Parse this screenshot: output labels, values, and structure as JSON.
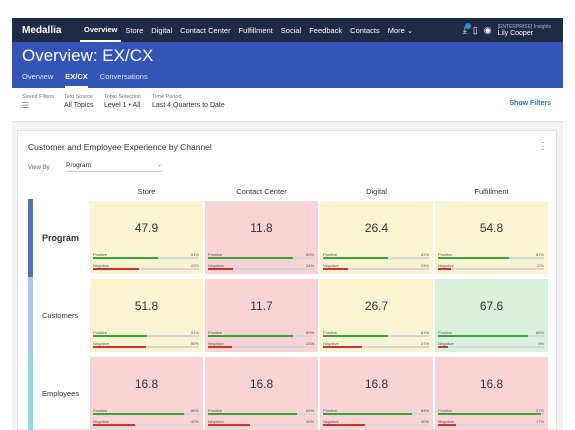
{
  "nav": {
    "logo": "Medallia",
    "items": [
      {
        "label": "Overview",
        "active": true
      },
      {
        "label": "Store",
        "active": false
      },
      {
        "label": "Digital",
        "active": false
      },
      {
        "label": "Contact Center",
        "active": false
      },
      {
        "label": "Fulfillment",
        "active": false
      },
      {
        "label": "Social",
        "active": false
      },
      {
        "label": "Feedback",
        "active": false
      },
      {
        "label": "Contacts",
        "active": false
      },
      {
        "label": "More ⌄",
        "active": false
      }
    ],
    "org": "[ENTERPRISE] Insights",
    "user": "Lily Cooper"
  },
  "page": {
    "title": "Overview: EX/CX",
    "tabs": [
      {
        "label": "Overview",
        "active": false
      },
      {
        "label": "EX/CX",
        "active": true
      },
      {
        "label": "Conversations",
        "active": false
      }
    ]
  },
  "filters": {
    "saved_label": "Saved Filters",
    "text_source_label": "Text Source",
    "text_source_value": "All Topics",
    "topic_label": "Topic Selection",
    "topic_value": "Level 1 • All",
    "period_label": "Time Period",
    "period_value": "Last 4 Quarters to Date",
    "show_filters": "Show Filters"
  },
  "card": {
    "title": "Customer and Employee Experience by Channel",
    "view_by_label": "View By",
    "view_by_value": "Program"
  },
  "colors": {
    "program_bar": "#5b6fc2",
    "customers_bar": "#a9c8ef",
    "employees_bar": "#8fdde0",
    "yellow": "#f9f5d3",
    "pink": "#f8d4d6",
    "green": "#d9f0dc",
    "positive": "#3aa335",
    "negative": "#d62f2f"
  },
  "matrix": {
    "columns": [
      "Store",
      "Contact Center",
      "Digital",
      "Fulfillment"
    ],
    "positive_label": "Positive",
    "negative_label": "Negative",
    "rows": [
      {
        "label": "Program",
        "cells": [
          {
            "value": "47.9",
            "tone": "yellow",
            "positive": 61,
            "negative": 43
          },
          {
            "value": "11.8",
            "tone": "pink",
            "positive": 80,
            "negative": 24
          },
          {
            "value": "26.4",
            "tone": "yellow",
            "positive": 61,
            "negative": 24
          },
          {
            "value": "54.8",
            "tone": "yellow",
            "positive": 67,
            "negative": 12
          }
        ]
      },
      {
        "label": "Customers",
        "cells": [
          {
            "value": "51.8",
            "tone": "yellow",
            "positive": 51,
            "negative": 50
          },
          {
            "value": "11.7",
            "tone": "pink",
            "positive": 80,
            "negative": 23
          },
          {
            "value": "26.7",
            "tone": "yellow",
            "positive": 61,
            "negative": 37
          },
          {
            "value": "67.6",
            "tone": "green",
            "positive": 85,
            "negative": 9
          }
        ]
      },
      {
        "label": "Employees",
        "cells": [
          {
            "value": "16.8",
            "tone": "pink",
            "positive": 86,
            "negative": 40
          },
          {
            "value": "16.8",
            "tone": "pink",
            "positive": 84,
            "negative": 40
          },
          {
            "value": "16.8",
            "tone": "pink",
            "positive": 84,
            "negative": 40
          },
          {
            "value": "16.8",
            "tone": "pink",
            "positive": 97,
            "negative": 17
          }
        ]
      }
    ]
  }
}
